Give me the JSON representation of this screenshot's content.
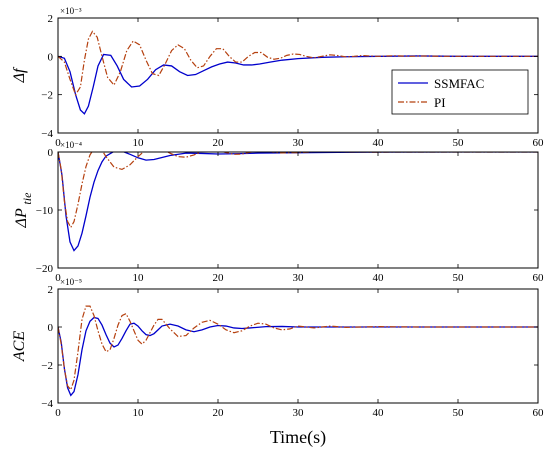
{
  "colors": {
    "ssmfac": "#0000cc",
    "pi": "#b5400f",
    "axis": "#000000"
  },
  "legend": {
    "placement": "right-middle of top panel"
  },
  "chart_data": [
    {
      "type": "line",
      "ylabel": "Δf",
      "y_exponent": "×10⁻³",
      "xlim": [
        0,
        60
      ],
      "ylim": [
        -4,
        2
      ],
      "xticks": [
        0,
        10,
        20,
        30,
        40,
        50,
        60
      ],
      "yticks": [
        -4,
        -2,
        0,
        2
      ],
      "grid": false,
      "legend": true,
      "series": [
        {
          "name": "SSMFAC",
          "x": [
            0,
            0.8,
            1.5,
            2.2,
            2.8,
            3.3,
            3.8,
            4.4,
            5.0,
            5.7,
            6.6,
            7.4,
            8.2,
            9.2,
            10.2,
            11.2,
            12.2,
            13.2,
            14.2,
            15.2,
            16.2,
            17.2,
            18.2,
            19.2,
            20.2,
            21.2,
            22.2,
            23.2,
            24.2,
            25.2,
            26.5,
            28,
            30,
            33,
            36,
            40,
            45,
            50,
            55,
            60
          ],
          "y": [
            0,
            -0.1,
            -0.8,
            -2.0,
            -2.8,
            -3.0,
            -2.6,
            -1.6,
            -0.5,
            0.1,
            0.05,
            -0.5,
            -1.2,
            -1.6,
            -1.55,
            -1.2,
            -0.7,
            -0.45,
            -0.5,
            -0.8,
            -1.0,
            -0.95,
            -0.75,
            -0.55,
            -0.4,
            -0.3,
            -0.35,
            -0.45,
            -0.45,
            -0.4,
            -0.3,
            -0.2,
            -0.12,
            -0.05,
            -0.02,
            0,
            0.02,
            0,
            0,
            0
          ]
        },
        {
          "name": "PI",
          "x": [
            0,
            0.8,
            1.5,
            2.2,
            2.8,
            3.3,
            3.8,
            4.3,
            4.9,
            5.5,
            6.2,
            7.0,
            7.8,
            8.6,
            9.4,
            10.2,
            11.0,
            11.8,
            12.6,
            13.4,
            14.2,
            15.0,
            15.8,
            16.6,
            17.4,
            18.2,
            19.0,
            19.8,
            20.6,
            21.4,
            22.2,
            23.0,
            23.8,
            24.6,
            25.4,
            26.2,
            27.0,
            27.8,
            28.6,
            29.4,
            30.2,
            31,
            32,
            33,
            34,
            35,
            36,
            37,
            38,
            40,
            42,
            44,
            46,
            48,
            50,
            55,
            60
          ],
          "y": [
            0,
            -0.3,
            -1.2,
            -2.0,
            -1.6,
            -0.2,
            0.9,
            1.3,
            1.0,
            0.0,
            -1.1,
            -1.5,
            -0.8,
            0.3,
            0.8,
            0.6,
            -0.2,
            -0.9,
            -1.0,
            -0.4,
            0.3,
            0.6,
            0.4,
            -0.2,
            -0.6,
            -0.5,
            0.0,
            0.4,
            0.4,
            0.0,
            -0.3,
            -0.3,
            0.0,
            0.2,
            0.2,
            -0.05,
            -0.15,
            -0.1,
            0.05,
            0.12,
            0.1,
            0.0,
            -0.08,
            0.0,
            0.08,
            0.04,
            -0.03,
            0.0,
            0.04,
            0.0,
            0.03,
            0.0,
            0.02,
            0,
            0,
            0,
            0
          ]
        }
      ]
    },
    {
      "type": "line",
      "ylabel": "ΔP",
      "ylabel_sub": "tie",
      "y_exponent": "×10⁻⁴",
      "xlim": [
        0,
        60
      ],
      "ylim": [
        -20,
        0
      ],
      "xticks": [
        0,
        10,
        20,
        30,
        40,
        50,
        60
      ],
      "yticks": [
        -20,
        -10,
        0
      ],
      "grid": false,
      "legend": false,
      "series": [
        {
          "name": "SSMFAC",
          "x": [
            0,
            0.5,
            1.0,
            1.5,
            2.0,
            2.5,
            3.0,
            3.5,
            4.0,
            4.5,
            5.0,
            5.5,
            6.0,
            7.0,
            8.0,
            9.0,
            10.0,
            11.0,
            12.0,
            14.0,
            16.0,
            18.0,
            20.0,
            22.0,
            25.0,
            30.0,
            35.0,
            40.0,
            50.0,
            60.0
          ],
          "y": [
            0,
            -4,
            -11,
            -15.5,
            -17,
            -16.2,
            -14,
            -11,
            -7.8,
            -5.2,
            -3.2,
            -1.7,
            -0.7,
            0.1,
            0.15,
            -0.4,
            -1.0,
            -1.4,
            -1.3,
            -0.6,
            -0.2,
            -0.25,
            -0.35,
            -0.3,
            -0.2,
            -0.12,
            -0.05,
            -0.02,
            0,
            0
          ]
        },
        {
          "name": "PI",
          "x": [
            0,
            0.4,
            0.8,
            1.2,
            1.6,
            2.0,
            2.5,
            3.0,
            3.5,
            4.0,
            4.5,
            5.0,
            5.5,
            6.0,
            7.0,
            8.0,
            9.0,
            10.0,
            11.0,
            12.0,
            13.0,
            14.0,
            15.0,
            16.0,
            17.0,
            18.0,
            19.0,
            20.0,
            21.0,
            22.0,
            23.0,
            24.0,
            25.0,
            26.0,
            27.0,
            28.0,
            30.0,
            32.0,
            34.0,
            36.0,
            40.0,
            45.0,
            50.0,
            60.0
          ],
          "y": [
            0,
            -3,
            -8.5,
            -12,
            -13,
            -12,
            -9,
            -5.5,
            -2.5,
            -0.5,
            0.6,
            0.9,
            0.3,
            -0.8,
            -2.6,
            -3,
            -2.2,
            -0.8,
            0.4,
            0.8,
            0.5,
            -0.2,
            -0.8,
            -0.9,
            -0.5,
            0.1,
            0.4,
            0.3,
            -0.1,
            -0.4,
            -0.35,
            -0.05,
            0.15,
            0.15,
            -0.05,
            -0.15,
            -0.1,
            0.02,
            0.05,
            0,
            -0.02,
            0,
            0,
            0
          ]
        }
      ]
    },
    {
      "type": "line",
      "ylabel": "ACE",
      "y_exponent": "×10⁻⁵",
      "xlabel": "Time(s)",
      "xlim": [
        0,
        60
      ],
      "ylim": [
        -4,
        2
      ],
      "xticks": [
        0,
        10,
        20,
        30,
        40,
        50,
        60
      ],
      "yticks": [
        -4,
        -2,
        0,
        2
      ],
      "grid": false,
      "legend": false,
      "series": [
        {
          "name": "SSMFAC",
          "x": [
            0,
            0.4,
            0.8,
            1.2,
            1.6,
            2.0,
            2.5,
            3.0,
            3.5,
            4.0,
            4.5,
            5.0,
            5.5,
            6.0,
            6.5,
            7.0,
            7.5,
            8.0,
            8.5,
            9.0,
            9.5,
            10.0,
            10.5,
            11.0,
            11.5,
            12.0,
            12.5,
            13.0,
            14.0,
            15.0,
            16.0,
            17.0,
            18.0,
            19.0,
            20.0,
            21.0,
            22.0,
            23.0,
            24.0,
            26.0,
            28.0,
            30.0,
            35.0,
            40.0,
            50.0,
            60.0
          ],
          "y": [
            0,
            -0.8,
            -2.2,
            -3.2,
            -3.6,
            -3.4,
            -2.5,
            -1.2,
            -0.2,
            0.3,
            0.5,
            0.45,
            0.1,
            -0.4,
            -0.85,
            -1.05,
            -0.95,
            -0.6,
            -0.2,
            0.15,
            0.2,
            0.05,
            -0.2,
            -0.4,
            -0.45,
            -0.35,
            -0.15,
            0.05,
            0.15,
            0.05,
            -0.15,
            -0.25,
            -0.15,
            0.0,
            0.08,
            0.05,
            -0.05,
            -0.08,
            -0.05,
            0.02,
            0.03,
            0.0,
            0.0,
            0.0,
            0,
            0
          ]
        },
        {
          "name": "PI",
          "x": [
            0,
            0.4,
            0.8,
            1.2,
            1.6,
            2.0,
            2.5,
            3.0,
            3.5,
            4.0,
            4.5,
            5.0,
            5.5,
            6.0,
            6.5,
            7.0,
            7.5,
            8.0,
            8.5,
            9.0,
            9.5,
            10.0,
            10.5,
            11.0,
            11.5,
            12.0,
            12.5,
            13.0,
            13.5,
            14.0,
            15.0,
            16.0,
            17.0,
            18.0,
            19.0,
            20.0,
            21.0,
            22.0,
            23.0,
            24.0,
            25.0,
            26.0,
            27.0,
            28.0,
            29.0,
            30.0,
            32.0,
            34.0,
            36.0,
            40.0,
            45.0,
            50.0,
            60.0
          ],
          "y": [
            0,
            -0.9,
            -2.2,
            -3.1,
            -3.3,
            -2.8,
            -1.3,
            0.4,
            1.1,
            1.1,
            0.6,
            -0.2,
            -0.9,
            -1.3,
            -1.2,
            -0.6,
            0.1,
            0.6,
            0.7,
            0.3,
            -0.2,
            -0.7,
            -0.9,
            -0.7,
            -0.3,
            0.1,
            0.4,
            0.4,
            0.15,
            -0.1,
            -0.5,
            -0.45,
            -0.05,
            0.25,
            0.35,
            0.15,
            -0.15,
            -0.3,
            -0.2,
            0.05,
            0.2,
            0.15,
            -0.05,
            -0.15,
            -0.1,
            0.05,
            -0.05,
            0.05,
            -0.02,
            0.02,
            0,
            0,
            0
          ]
        }
      ]
    }
  ]
}
